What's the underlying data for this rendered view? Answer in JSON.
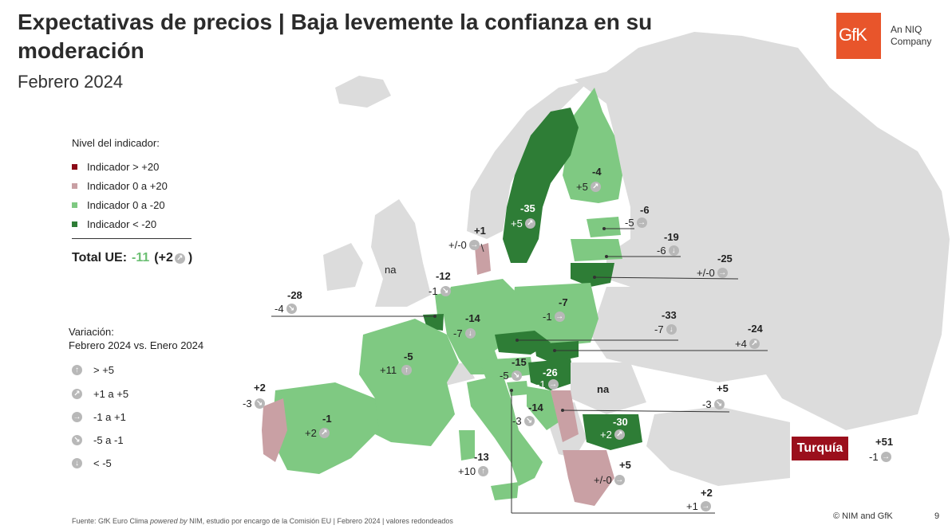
{
  "title": "Expectativas de precios | Baja levemente la confianza en su moderación",
  "subtitle": "Febrero 2024",
  "logo": {
    "text": "GfK",
    "tagline_1": "An NIQ",
    "tagline_2": "Company"
  },
  "colors": {
    "dark_red": "#8b0a17",
    "pink": "#c9a0a4",
    "light_green": "#7fc982",
    "dark_green": "#2e7d36",
    "grey": "#d9d9d9"
  },
  "legend": {
    "title": "Nivel del indicador:",
    "items": [
      {
        "label": "Indicador > +20"
      },
      {
        "label": "Indicador 0 a +20"
      },
      {
        "label": "Indicador 0 a -20"
      },
      {
        "label": "Indicador < -20"
      }
    ]
  },
  "total": {
    "prefix": "Total UE:",
    "value": "-11",
    "change": "(+2",
    "suffix": ")"
  },
  "variation": {
    "title_1": "Variación:",
    "title_2": "Febrero 2024 vs. Enero 2024",
    "items": [
      {
        "label": "> +5",
        "icon": "arrow-up-icon"
      },
      {
        "label": "+1 a +5",
        "icon": "arrow-up-right-icon"
      },
      {
        "label": "-1 a +1",
        "icon": "arrow-right-icon"
      },
      {
        "label": "-5 a -1",
        "icon": "arrow-down-right-icon"
      },
      {
        "label": "< -5",
        "icon": "arrow-down-icon"
      }
    ]
  },
  "countries": {
    "finland": {
      "value": "-4",
      "change": "+5"
    },
    "sweden": {
      "value": "-35",
      "change": "+5"
    },
    "denmark": {
      "value": "+1",
      "change": "+/-0"
    },
    "estonia": {
      "value": "-6",
      "change": "-5"
    },
    "latvia": {
      "value": "-19",
      "change": "-6"
    },
    "lithuania": {
      "value": "-25",
      "change": "+/-0"
    },
    "netherlands": {
      "value": "-12",
      "change": "-1"
    },
    "belgium": {
      "value": "-28",
      "change": "-4"
    },
    "germany": {
      "value": "-14",
      "change": "-7"
    },
    "poland": {
      "value": "-7",
      "change": "-1"
    },
    "czechia": {
      "value": "-33",
      "change": "-7"
    },
    "slovakia": {
      "value": "-24",
      "change": "+4"
    },
    "france": {
      "value": "-5",
      "change": "+11"
    },
    "austria": {
      "value": "-15",
      "change": "-5"
    },
    "hungary": {
      "value": "-26",
      "change": "-1"
    },
    "romania": {
      "value": "na"
    },
    "uk": {
      "value": "na"
    },
    "portugal": {
      "value": "+2",
      "change": "-3"
    },
    "spain": {
      "value": "-1",
      "change": "+2"
    },
    "slovenia": {
      "value": "-14",
      "change": "-3"
    },
    "croatia": {
      "value": "+5",
      "change": "-3"
    },
    "bulgaria": {
      "value": "-30",
      "change": "+2"
    },
    "italy": {
      "value": "-13",
      "change": "+10"
    },
    "greece": {
      "value": "+5",
      "change": "+/-0"
    },
    "malta": {
      "value": "+2",
      "change": "+1"
    },
    "turkey": {
      "name": "Turquía",
      "value": "+51",
      "change": "-1"
    }
  },
  "footer": {
    "source_1": "Fuente: GfK Euro Clima ",
    "source_2": "powered by",
    "source_3": " NIM, estudio por encargo de la Comisión EU | Febrero 2024 | valores redondeados",
    "copyright": "© NIM and GfK",
    "page": "9"
  }
}
